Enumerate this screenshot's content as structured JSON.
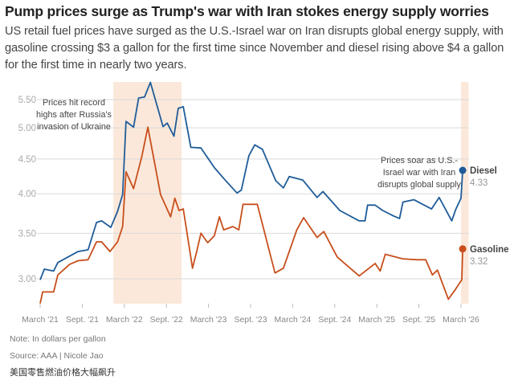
{
  "header": {
    "title": "Pump prices surge as Trump's war with Iran stokes energy supply worries",
    "subtitle": "US retail fuel prices have surged as the U.S.-Israel war on Iran disrupts global energy supply, with gasoline crossing $3 a gallon for the first time since November and diesel rising above $4 a gallon for the first time in nearly two years."
  },
  "footer": {
    "note": "Note: In dollars per gallon",
    "source": "Source: AAA | Nicole Jao",
    "caption_cn": "美国零售燃油价格大幅飙升"
  },
  "chart_data": {
    "type": "line",
    "title": "Pump prices surge as Trump's war with Iran stokes energy supply worries",
    "xlabel": "",
    "ylabel": "In dollars per gallon",
    "y_scale": "log",
    "ylim": [
      2.75,
      5.85
    ],
    "xlim": [
      2021.17,
      2026.2
    ],
    "grid": true,
    "y_ticks": [
      3.0,
      3.5,
      4.0,
      4.5,
      5.0,
      5.5
    ],
    "y_tick_labels": [
      "3.00",
      "3.50",
      "4.00",
      "4.50",
      "5.00",
      "5.50"
    ],
    "x_ticks": [
      2021.17,
      2021.67,
      2022.17,
      2022.67,
      2023.17,
      2023.67,
      2024.17,
      2024.67,
      2025.17,
      2025.67,
      2026.17
    ],
    "x_tick_labels": [
      "March '21",
      "Sept. '21",
      "March '22",
      "Sept. '22",
      "March '23",
      "Sept. '23",
      "March '24",
      "Sept. '24",
      "March '25",
      "Sept. '25",
      "March '26"
    ],
    "shaded_periods": [
      [
        2022.04,
        2022.85
      ],
      [
        2026.17,
        2026.26
      ]
    ],
    "annotations": [
      {
        "lines": [
          "Prices hit record",
          "highs after Russia's",
          "invasion of Ukraine"
        ]
      },
      {
        "lines": [
          "Prices soar as U.S.-",
          "Israel war with Iran",
          "disrupts global supply"
        ]
      }
    ],
    "series": [
      {
        "name": "Diesel",
        "color": "#1f5c98",
        "last_label": "4.33",
        "points": [
          [
            2021.17,
            2.99
          ],
          [
            2021.22,
            3.1
          ],
          [
            2021.33,
            3.08
          ],
          [
            2021.38,
            3.17
          ],
          [
            2021.62,
            3.29
          ],
          [
            2021.74,
            3.31
          ],
          [
            2021.84,
            3.63
          ],
          [
            2021.9,
            3.65
          ],
          [
            2022.01,
            3.57
          ],
          [
            2022.09,
            3.77
          ],
          [
            2022.15,
            3.99
          ],
          [
            2022.19,
            5.11
          ],
          [
            2022.28,
            5.01
          ],
          [
            2022.34,
            5.53
          ],
          [
            2022.41,
            5.55
          ],
          [
            2022.48,
            5.83
          ],
          [
            2022.63,
            5.02
          ],
          [
            2022.68,
            5.08
          ],
          [
            2022.76,
            4.86
          ],
          [
            2022.81,
            5.34
          ],
          [
            2022.87,
            5.37
          ],
          [
            2022.96,
            4.68
          ],
          [
            2023.08,
            4.67
          ],
          [
            2023.24,
            4.37
          ],
          [
            2023.36,
            4.2
          ],
          [
            2023.51,
            4.01
          ],
          [
            2023.56,
            4.05
          ],
          [
            2023.65,
            4.55
          ],
          [
            2023.72,
            4.72
          ],
          [
            2023.81,
            4.65
          ],
          [
            2023.97,
            4.18
          ],
          [
            2024.06,
            4.08
          ],
          [
            2024.13,
            4.24
          ],
          [
            2024.29,
            4.19
          ],
          [
            2024.46,
            3.95
          ],
          [
            2024.53,
            4.03
          ],
          [
            2024.73,
            3.78
          ],
          [
            2024.96,
            3.65
          ],
          [
            2025.03,
            3.65
          ],
          [
            2025.06,
            3.85
          ],
          [
            2025.15,
            3.85
          ],
          [
            2025.24,
            3.78
          ],
          [
            2025.37,
            3.71
          ],
          [
            2025.44,
            3.68
          ],
          [
            2025.48,
            3.89
          ],
          [
            2025.61,
            3.92
          ],
          [
            2025.82,
            3.8
          ],
          [
            2025.91,
            3.95
          ],
          [
            2026.06,
            3.65
          ],
          [
            2026.11,
            3.8
          ],
          [
            2026.17,
            3.94
          ],
          [
            2026.19,
            4.33
          ]
        ]
      },
      {
        "name": "Gasoline",
        "color": "#c84f1c",
        "last_label": "3.32",
        "points": [
          [
            2021.17,
            2.76
          ],
          [
            2021.2,
            2.87
          ],
          [
            2021.33,
            2.87
          ],
          [
            2021.38,
            3.04
          ],
          [
            2021.52,
            3.15
          ],
          [
            2021.62,
            3.19
          ],
          [
            2021.74,
            3.2
          ],
          [
            2021.84,
            3.4
          ],
          [
            2021.9,
            3.4
          ],
          [
            2022.0,
            3.29
          ],
          [
            2022.09,
            3.4
          ],
          [
            2022.15,
            3.58
          ],
          [
            2022.19,
            4.31
          ],
          [
            2022.28,
            4.07
          ],
          [
            2022.38,
            4.55
          ],
          [
            2022.45,
            5.01
          ],
          [
            2022.6,
            3.99
          ],
          [
            2022.72,
            3.7
          ],
          [
            2022.77,
            3.94
          ],
          [
            2022.82,
            3.78
          ],
          [
            2022.87,
            3.8
          ],
          [
            2022.98,
            3.11
          ],
          [
            2023.03,
            3.29
          ],
          [
            2023.08,
            3.5
          ],
          [
            2023.16,
            3.39
          ],
          [
            2023.24,
            3.47
          ],
          [
            2023.3,
            3.7
          ],
          [
            2023.35,
            3.54
          ],
          [
            2023.46,
            3.58
          ],
          [
            2023.53,
            3.54
          ],
          [
            2023.58,
            3.86
          ],
          [
            2023.75,
            3.86
          ],
          [
            2023.96,
            3.06
          ],
          [
            2024.06,
            3.11
          ],
          [
            2024.22,
            3.54
          ],
          [
            2024.3,
            3.69
          ],
          [
            2024.46,
            3.45
          ],
          [
            2024.54,
            3.52
          ],
          [
            2024.7,
            3.23
          ],
          [
            2024.96,
            3.03
          ],
          [
            2025.15,
            3.16
          ],
          [
            2025.21,
            3.08
          ],
          [
            2025.27,
            3.26
          ],
          [
            2025.48,
            3.21
          ],
          [
            2025.65,
            3.2
          ],
          [
            2025.75,
            3.2
          ],
          [
            2025.83,
            3.04
          ],
          [
            2025.89,
            3.09
          ],
          [
            2026.02,
            2.8
          ],
          [
            2026.1,
            2.89
          ],
          [
            2026.18,
            2.99
          ],
          [
            2026.19,
            3.32
          ]
        ]
      }
    ]
  }
}
